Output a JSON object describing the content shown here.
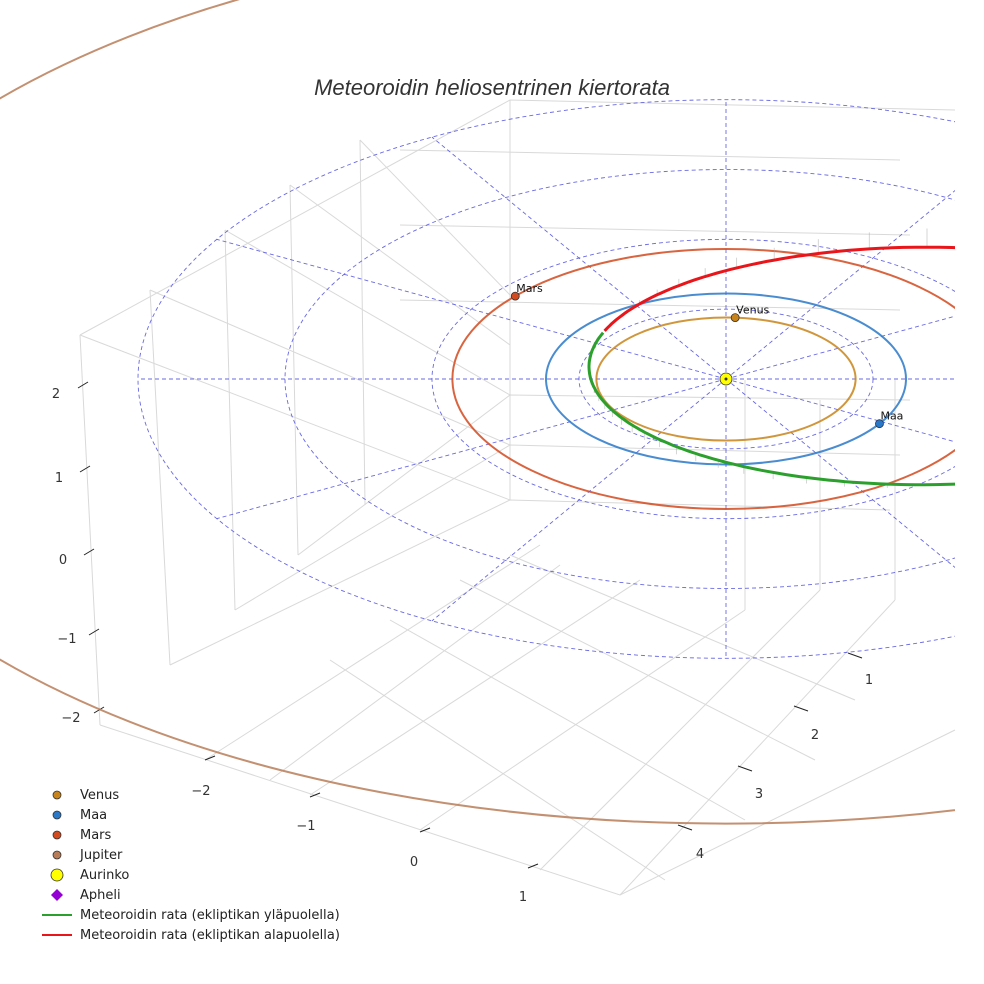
{
  "chart_data": {
    "type": "3d-orbit",
    "title": "Meteoroidin heliosentrinen kiertorata",
    "axes": {
      "x": {
        "ticks": [
          "−2",
          "−1",
          "0",
          "1"
        ]
      },
      "y": {
        "ticks": [
          "1",
          "2",
          "3",
          "4"
        ]
      },
      "z": {
        "ticks": [
          "−2",
          "−1",
          "0",
          "1",
          "2"
        ]
      }
    },
    "planets": [
      {
        "name": "Venus",
        "label": "Venus",
        "orbit_radius_au": 0.72,
        "color": "#c8841a"
      },
      {
        "name": "Maa",
        "label": "Maa",
        "orbit_radius_au": 1.0,
        "color": "#2a78c8"
      },
      {
        "name": "Mars",
        "label": "Mars",
        "orbit_radius_au": 1.52,
        "color": "#d24a1e"
      },
      {
        "name": "Jupiter",
        "label": "",
        "orbit_radius_au": 5.2,
        "color": "#b87c58"
      }
    ],
    "sun": {
      "name": "Aurinko",
      "color": "#ffff00"
    },
    "aphelion": {
      "name": "Apheli",
      "color": "#9400d3"
    },
    "meteoroid_orbit": {
      "above_label": "Meteoroidin rata (ekliptikan yläpuolella)",
      "below_label": "Meteoroidin rata (ekliptikan alapuolella)",
      "above_color": "#2ca02c",
      "below_color": "#e8161b",
      "perihelion_au": 0.75,
      "aphelion_au": 3.0
    },
    "reference_grid": {
      "ring_radii_au": [
        1,
        2,
        3,
        4
      ],
      "spokes": 12,
      "color": "#4444dd"
    }
  },
  "legend": [
    {
      "label": "Venus",
      "symbol": "dot",
      "color": "#c8841a"
    },
    {
      "label": "Maa",
      "symbol": "dot",
      "color": "#2a78c8"
    },
    {
      "label": "Mars",
      "symbol": "dot",
      "color": "#d24a1e"
    },
    {
      "label": "Jupiter",
      "symbol": "dot",
      "color": "#b87c58"
    },
    {
      "label": "Aurinko",
      "symbol": "sun",
      "color": "#ffff00"
    },
    {
      "label": "Apheli",
      "symbol": "diamond",
      "color": "#9400d3"
    },
    {
      "label": "Meteoroidin rata (ekliptikan yläpuolella)",
      "symbol": "line",
      "color": "#2ca02c"
    },
    {
      "label": "Meteoroidin rata (ekliptikan alapuolella)",
      "symbol": "line",
      "color": "#e8161b"
    }
  ]
}
